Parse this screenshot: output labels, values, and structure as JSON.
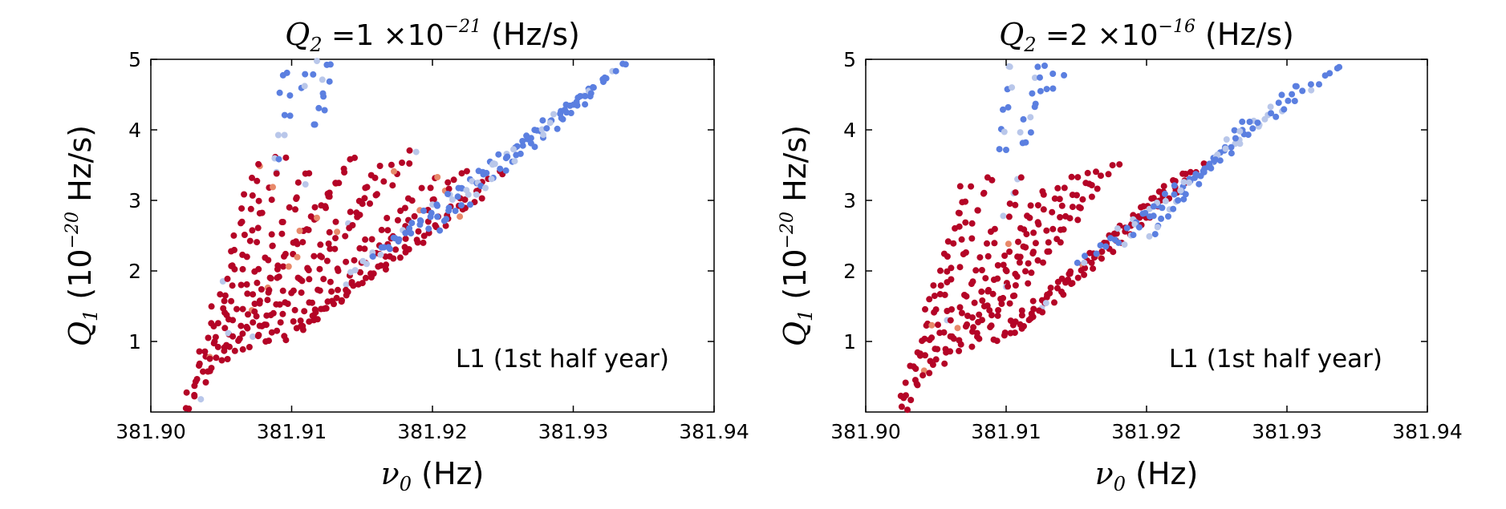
{
  "chart_data": [
    {
      "type": "scatter",
      "title": "Q_2 =1 ×10^{-21}  (Hz/s)",
      "title_parts": {
        "sym": "Q",
        "sub": "2",
        "mid": "=1 ×10",
        "sup": "−21",
        "unit": "(Hz/s)"
      },
      "xlabel": "ν_0  (Hz)",
      "xlabel_parts": {
        "sym": "ν",
        "sub": "0",
        "unit": "(Hz)"
      },
      "ylabel": "Q_1  (10^{-20} Hz/s)",
      "ylabel_parts": {
        "sym": "Q",
        "sub": "1",
        "pre": "(10",
        "sup": "−20",
        "unit": "Hz/s)"
      },
      "annotation": "L1 (1st half year)",
      "xlim": [
        381.9,
        381.94
      ],
      "ylim": [
        0,
        5
      ],
      "xticks": [
        "381.90",
        "381.91",
        "381.92",
        "381.93",
        "381.94"
      ],
      "yticks": [
        "1",
        "2",
        "3",
        "4",
        "5"
      ],
      "colors": {
        "red": "#b40426",
        "blue": "#5b7fe0",
        "light": "#b9c7ea",
        "orange": "#e8896a"
      },
      "series": [
        {
          "color": "red",
          "lines": [
            {
              "x0": 381.9025,
              "y0": 0.05,
              "x1": 381.9075,
              "y1": 3.5,
              "step": 0.2
            },
            {
              "x0": 381.903,
              "y0": 0.2,
              "x1": 381.909,
              "y1": 3.6,
              "step": 0.2
            },
            {
              "x0": 381.904,
              "y0": 0.6,
              "x1": 381.911,
              "y1": 3.4,
              "step": 0.18
            },
            {
              "x0": 381.905,
              "y0": 0.75,
              "x1": 381.913,
              "y1": 3.25,
              "step": 0.17
            },
            {
              "x0": 381.9055,
              "y0": 0.85,
              "x1": 381.914,
              "y1": 3.6,
              "step": 0.17
            },
            {
              "x0": 381.9065,
              "y0": 0.9,
              "x1": 381.9165,
              "y1": 3.5,
              "step": 0.16
            },
            {
              "x0": 381.9075,
              "y0": 1.1,
              "x1": 381.9185,
              "y1": 3.7,
              "step": 0.15
            },
            {
              "x0": 381.908,
              "y0": 1.0,
              "x1": 381.92,
              "y1": 3.3,
              "step": 0.14
            },
            {
              "x0": 381.9095,
              "y0": 1.05,
              "x1": 381.922,
              "y1": 3.4,
              "step": 0.13
            },
            {
              "x0": 381.9105,
              "y0": 1.2,
              "x1": 381.923,
              "y1": 3.0,
              "step": 0.12
            },
            {
              "x0": 381.9115,
              "y0": 1.35,
              "x1": 381.9245,
              "y1": 3.4,
              "step": 0.12
            }
          ]
        },
        {
          "color": "blue",
          "lines": [
            {
              "x0": 381.914,
              "y0": 2.0,
              "x1": 381.9335,
              "y1": 4.95,
              "step": 0.12
            },
            {
              "x0": 381.916,
              "y0": 2.2,
              "x1": 381.932,
              "y1": 4.7,
              "step": 0.12
            },
            {
              "x0": 381.92,
              "y0": 2.6,
              "x1": 381.931,
              "y1": 4.5,
              "step": 0.12
            },
            {
              "x0": 381.909,
              "y0": 3.6,
              "x1": 381.9095,
              "y1": 4.8,
              "step": 0.3
            },
            {
              "x0": 381.9105,
              "y0": 4.6,
              "x1": 381.912,
              "y1": 5.0,
              "step": 0.2
            },
            {
              "x0": 381.9115,
              "y0": 4.1,
              "x1": 381.9125,
              "y1": 4.9,
              "step": 0.2
            }
          ]
        }
      ]
    },
    {
      "type": "scatter",
      "title": "Q_2 =2 ×10^{-16}  (Hz/s)",
      "title_parts": {
        "sym": "Q",
        "sub": "2",
        "mid": "=2 ×10",
        "sup": "−16",
        "unit": "(Hz/s)"
      },
      "xlabel": "ν_0  (Hz)",
      "xlabel_parts": {
        "sym": "ν",
        "sub": "0",
        "unit": "(Hz)"
      },
      "ylabel": "Q_1  (10^{-20} Hz/s)",
      "ylabel_parts": {
        "sym": "Q",
        "sub": "1",
        "pre": "(10",
        "sup": "−20",
        "unit": "Hz/s)"
      },
      "annotation": "L1 (1st half year)",
      "xlim": [
        381.9,
        381.94
      ],
      "ylim": [
        0,
        5
      ],
      "xticks": [
        "381.90",
        "381.91",
        "381.92",
        "381.93",
        "381.94"
      ],
      "yticks": [
        "1",
        "2",
        "3",
        "4",
        "5"
      ],
      "colors": {
        "red": "#b40426",
        "blue": "#5b7fe0",
        "light": "#b9c7ea",
        "orange": "#e8896a"
      },
      "series": [
        {
          "color": "red",
          "lines": [
            {
              "x0": 381.9025,
              "y0": 0.05,
              "x1": 381.907,
              "y1": 3.2,
              "step": 0.2
            },
            {
              "x0": 381.903,
              "y0": 0.2,
              "x1": 381.9085,
              "y1": 3.3,
              "step": 0.2
            },
            {
              "x0": 381.904,
              "y0": 0.55,
              "x1": 381.911,
              "y1": 3.3,
              "step": 0.18
            },
            {
              "x0": 381.905,
              "y0": 0.7,
              "x1": 381.9125,
              "y1": 3.1,
              "step": 0.17
            },
            {
              "x0": 381.906,
              "y0": 0.85,
              "x1": 381.9145,
              "y1": 3.35,
              "step": 0.17
            },
            {
              "x0": 381.907,
              "y0": 0.95,
              "x1": 381.916,
              "y1": 3.4,
              "step": 0.16
            },
            {
              "x0": 381.908,
              "y0": 1.05,
              "x1": 381.9175,
              "y1": 3.5,
              "step": 0.15
            },
            {
              "x0": 381.909,
              "y0": 1.0,
              "x1": 381.9215,
              "y1": 3.2,
              "step": 0.14
            },
            {
              "x0": 381.91,
              "y0": 1.1,
              "x1": 381.9225,
              "y1": 3.4,
              "step": 0.13
            },
            {
              "x0": 381.911,
              "y0": 1.2,
              "x1": 381.924,
              "y1": 3.5,
              "step": 0.12
            }
          ]
        },
        {
          "color": "blue",
          "lines": [
            {
              "x0": 381.915,
              "y0": 2.1,
              "x1": 381.9335,
              "y1": 4.9,
              "step": 0.12
            },
            {
              "x0": 381.918,
              "y0": 2.4,
              "x1": 381.9305,
              "y1": 4.6,
              "step": 0.12
            },
            {
              "x0": 381.92,
              "y0": 2.5,
              "x1": 381.927,
              "y1": 4.1,
              "step": 0.12
            },
            {
              "x0": 381.9095,
              "y0": 3.7,
              "x1": 381.91,
              "y1": 4.9,
              "step": 0.3
            },
            {
              "x0": 381.911,
              "y0": 3.8,
              "x1": 381.9125,
              "y1": 4.9,
              "step": 0.2
            },
            {
              "x0": 381.913,
              "y0": 4.6,
              "x1": 381.9135,
              "y1": 4.8,
              "step": 0.2
            }
          ]
        }
      ]
    }
  ]
}
